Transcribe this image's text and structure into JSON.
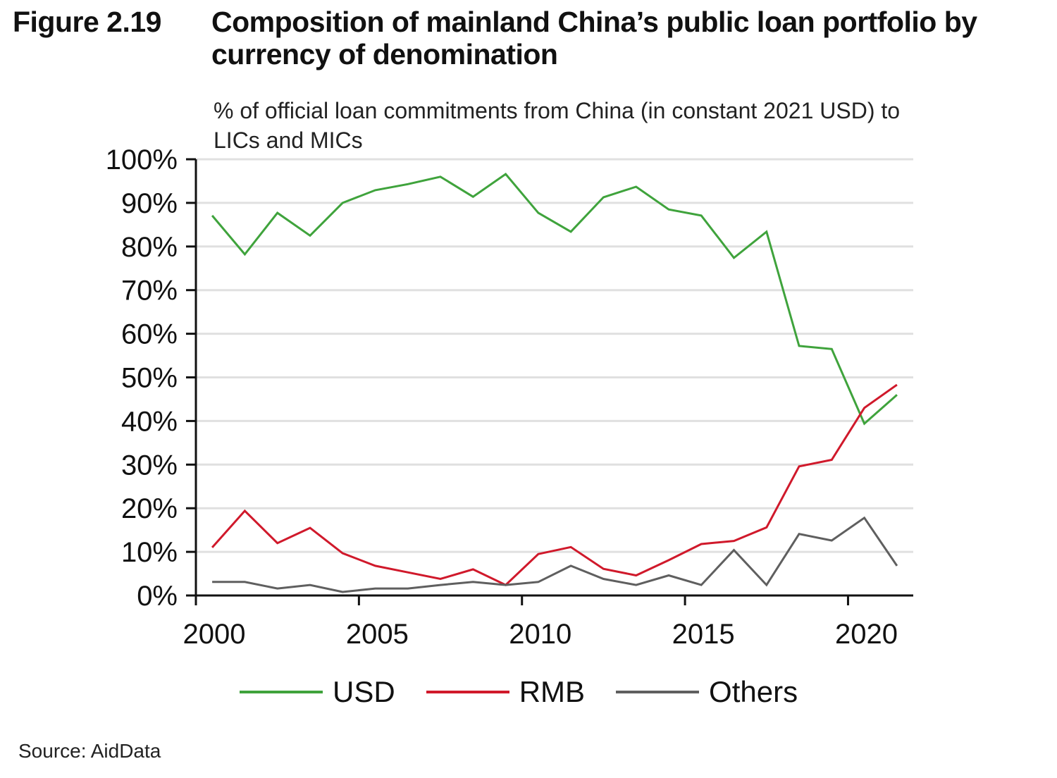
{
  "figure": {
    "label": "Figure 2.19",
    "title": "Composition of mainland China’s public loan portfolio by currency of denomination",
    "source": "Source: AidData"
  },
  "chart_data": {
    "type": "line",
    "title": "Composition of mainland China’s public loan portfolio by currency of denomination",
    "subtitle": "% of official loan commitments from China (in constant 2021 USD) to LICs and MICs",
    "xlabel": "",
    "ylabel": "% of official loan commitments from China (in constant 2021 USD) to LICs and MICs",
    "x": [
      2000,
      2001,
      2002,
      2003,
      2004,
      2005,
      2006,
      2007,
      2008,
      2009,
      2010,
      2011,
      2012,
      2013,
      2014,
      2015,
      2016,
      2017,
      2018,
      2019,
      2020,
      2021
    ],
    "x_tick_labels": [
      "2000",
      "2005",
      "2010",
      "2015",
      "2020"
    ],
    "y_tick_labels": [
      "0%",
      "10%",
      "20%",
      "30%",
      "40%",
      "50%",
      "60%",
      "70%",
      "80%",
      "90%",
      "100%"
    ],
    "ylim": [
      0,
      100
    ],
    "grid": "horizontal",
    "legend_position": "bottom",
    "series": [
      {
        "name": "USD",
        "color": "#3fa33c",
        "values": [
          87.1,
          78.2,
          87.7,
          82.5,
          90.0,
          92.9,
          94.3,
          96.0,
          91.4,
          96.6,
          87.7,
          83.4,
          91.3,
          93.7,
          88.5,
          87.1,
          77.4,
          83.4,
          57.2,
          56.5,
          39.4,
          46.0
        ]
      },
      {
        "name": "RMB",
        "color": "#d0192b",
        "values": [
          11.0,
          19.4,
          12.0,
          15.5,
          9.7,
          6.8,
          5.3,
          3.8,
          6.0,
          2.4,
          9.5,
          11.1,
          6.1,
          4.6,
          8.1,
          11.8,
          12.5,
          15.6,
          29.6,
          31.1,
          43.0,
          48.3
        ]
      },
      {
        "name": "Others",
        "color": "#5f5f5f",
        "values": [
          3.1,
          3.1,
          1.6,
          2.4,
          0.8,
          1.6,
          1.6,
          2.4,
          3.1,
          2.4,
          3.1,
          6.8,
          3.8,
          2.4,
          4.6,
          2.4,
          10.4,
          2.4,
          14.1,
          12.6,
          17.8,
          6.8
        ]
      }
    ]
  }
}
